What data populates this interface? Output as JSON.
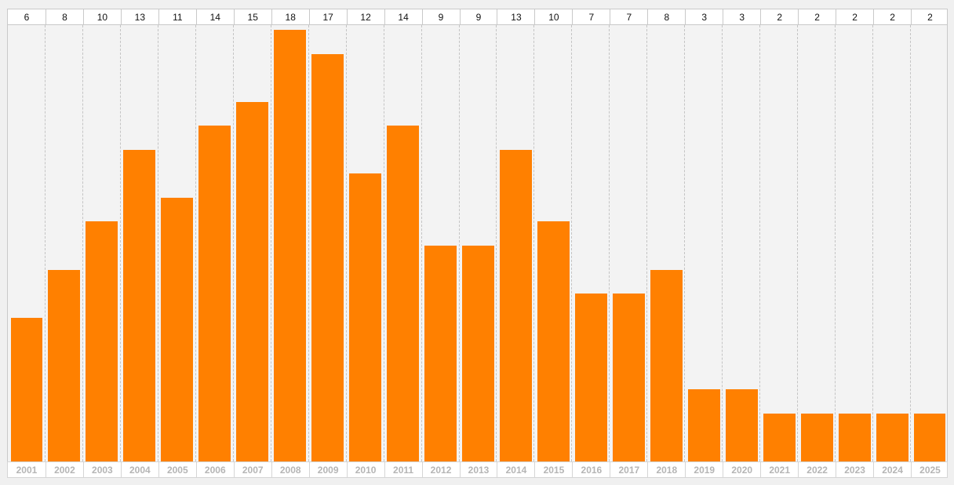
{
  "chart_data": {
    "type": "bar",
    "categories": [
      "2001",
      "2002",
      "2003",
      "2004",
      "2005",
      "2006",
      "2007",
      "2008",
      "2009",
      "2010",
      "2011",
      "2012",
      "2013",
      "2014",
      "2015",
      "2016",
      "2017",
      "2018",
      "2019",
      "2020",
      "2021",
      "2022",
      "2023",
      "2024",
      "2025"
    ],
    "values": [
      6,
      8,
      10,
      13,
      11,
      14,
      15,
      18,
      17,
      12,
      14,
      9,
      9,
      13,
      10,
      7,
      7,
      8,
      3,
      3,
      2,
      2,
      2,
      2,
      2
    ],
    "value_labels": [
      "6",
      "8",
      "10",
      "13",
      "11",
      "14",
      "15",
      "18",
      "17",
      "12",
      "14",
      "9",
      "9",
      "13",
      "10",
      "7",
      "7",
      "8",
      "3",
      "3",
      "2",
      "2",
      "2",
      "2",
      "2"
    ],
    "title": "",
    "xlabel": "",
    "ylabel": "",
    "ylim": [
      0,
      18
    ],
    "grid": "vertical dashed",
    "legend": "none",
    "bar_color": "#ff8000"
  }
}
